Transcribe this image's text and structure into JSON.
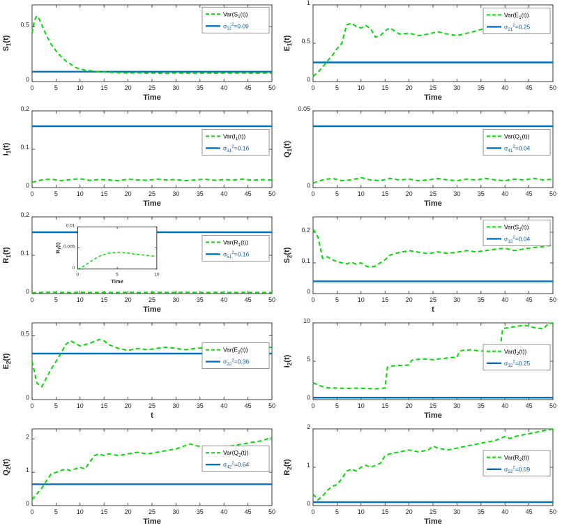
{
  "colors": {
    "series_green": "#00dd00",
    "hline_blue": "#0072bd",
    "axis": "#262626",
    "legend_border": "#7a7a7a",
    "var_text": "#000000",
    "sigma_text": "#0b5aa5"
  },
  "chart_data": [
    {
      "id": "S1",
      "type": "line",
      "ylabel": "S_1(t)",
      "xlabel": "Time",
      "xlim": [
        0,
        50
      ],
      "xticks": [
        0,
        5,
        10,
        15,
        20,
        25,
        30,
        35,
        40,
        45,
        50
      ],
      "ylim": [
        0,
        0.7
      ],
      "yticks": [
        0,
        0.5
      ],
      "legend": [
        {
          "label": "Var(S_1(t))"
        },
        {
          "label": "σ_11^2=0.09"
        }
      ],
      "legend_y": 0.03,
      "hline": 0.09,
      "x": [
        0,
        0.5,
        1,
        1.5,
        2,
        2.5,
        3,
        4,
        5,
        6,
        7,
        8,
        9,
        10,
        11,
        12,
        14,
        16,
        18,
        20,
        22,
        24,
        26,
        28,
        30,
        32,
        34,
        36,
        38,
        40,
        42,
        44,
        46,
        48,
        50
      ],
      "y": [
        0.44,
        0.56,
        0.6,
        0.57,
        0.52,
        0.47,
        0.42,
        0.34,
        0.28,
        0.23,
        0.19,
        0.16,
        0.13,
        0.115,
        0.105,
        0.1,
        0.09,
        0.085,
        0.082,
        0.078,
        0.08,
        0.076,
        0.078,
        0.074,
        0.079,
        0.077,
        0.075,
        0.078,
        0.076,
        0.078,
        0.077,
        0.078,
        0.076,
        0.078,
        0.077
      ]
    },
    {
      "id": "E1",
      "type": "line",
      "ylabel": "E_1(t)",
      "xlabel": "Time",
      "xlim": [
        0,
        50
      ],
      "xticks": [
        0,
        5,
        10,
        15,
        20,
        25,
        30,
        35,
        40,
        45,
        50
      ],
      "ylim": [
        0,
        1
      ],
      "yticks": [
        0,
        0.5,
        1
      ],
      "legend": [
        {
          "label": "Var(E_1(t))"
        },
        {
          "label": "σ_21^2=0.25"
        }
      ],
      "legend_y": 0.04,
      "hline": 0.25,
      "x": [
        0,
        1,
        2,
        3,
        4,
        5,
        6,
        6.5,
        7,
        8,
        9,
        10,
        11,
        12,
        13,
        14,
        15,
        16,
        17,
        18,
        20,
        22,
        24,
        26,
        28,
        30,
        32,
        34,
        36,
        38,
        40,
        42,
        44,
        46,
        48,
        50
      ],
      "y": [
        0.07,
        0.12,
        0.19,
        0.27,
        0.34,
        0.43,
        0.5,
        0.62,
        0.74,
        0.76,
        0.72,
        0.7,
        0.73,
        0.69,
        0.58,
        0.6,
        0.66,
        0.7,
        0.66,
        0.62,
        0.63,
        0.6,
        0.62,
        0.65,
        0.62,
        0.6,
        0.63,
        0.66,
        0.7,
        0.66,
        0.64,
        0.68,
        0.72,
        0.7,
        0.73,
        0.75
      ]
    },
    {
      "id": "I1",
      "type": "line",
      "ylabel": "I_1(t)",
      "xlabel": "Time",
      "xlim": [
        0,
        50
      ],
      "xticks": [
        0,
        5,
        10,
        15,
        20,
        25,
        30,
        35,
        40,
        45,
        50
      ],
      "ylim": [
        0,
        0.2
      ],
      "yticks": [
        0,
        0.1,
        0.2
      ],
      "legend": [
        {
          "label": "Var(I_1(t))"
        },
        {
          "label": "σ_31^2=0.16"
        }
      ],
      "legend_y": 0.24,
      "hline": 0.16,
      "x": [
        0,
        2,
        4,
        6,
        8,
        10,
        12,
        14,
        16,
        18,
        20,
        22,
        24,
        26,
        28,
        30,
        32,
        34,
        36,
        38,
        40,
        42,
        44,
        46,
        48,
        50
      ],
      "y": [
        0.014,
        0.02,
        0.022,
        0.018,
        0.021,
        0.023,
        0.019,
        0.021,
        0.02,
        0.018,
        0.022,
        0.02,
        0.019,
        0.022,
        0.02,
        0.021,
        0.018,
        0.02,
        0.022,
        0.019,
        0.021,
        0.02,
        0.022,
        0.019,
        0.021,
        0.02
      ]
    },
    {
      "id": "Q1",
      "type": "line",
      "ylabel": "Q_1(t)",
      "xlabel": "Time",
      "xlim": [
        0,
        50
      ],
      "xticks": [
        0,
        5,
        10,
        15,
        20,
        25,
        30,
        35,
        40,
        45,
        50
      ],
      "ylim": [
        0,
        0.05
      ],
      "yticks": [
        0,
        0.05
      ],
      "legend": [
        {
          "label": "Var(Q_1(t))"
        },
        {
          "label": "σ_41^2=0.04"
        }
      ],
      "legend_y": 0.24,
      "hline": 0.04,
      "x": [
        0,
        2,
        4,
        6,
        8,
        10,
        12,
        14,
        16,
        18,
        20,
        22,
        24,
        26,
        28,
        30,
        32,
        34,
        36,
        38,
        40,
        42,
        44,
        46,
        48,
        50
      ],
      "y": [
        0.003,
        0.005,
        0.006,
        0.0045,
        0.005,
        0.0065,
        0.005,
        0.0045,
        0.006,
        0.005,
        0.0055,
        0.0045,
        0.005,
        0.006,
        0.005,
        0.0045,
        0.0055,
        0.005,
        0.006,
        0.005,
        0.0045,
        0.0055,
        0.005,
        0.006,
        0.005,
        0.0055
      ]
    },
    {
      "id": "R1",
      "type": "line",
      "ylabel": "R_1(t)",
      "xlabel": "Time",
      "xlim": [
        0,
        50
      ],
      "xticks": [
        0,
        5,
        10,
        15,
        20,
        25,
        30,
        35,
        40,
        45,
        50
      ],
      "ylim": [
        0,
        0.2
      ],
      "yticks": [
        0,
        0.1,
        0.2
      ],
      "legend": [
        {
          "label": "Var(R_1(t))"
        },
        {
          "label": "σ_51^2=0.16"
        }
      ],
      "legend_y": 0.24,
      "hline": 0.16,
      "x": [
        0,
        2,
        4,
        6,
        8,
        10,
        12,
        14,
        16,
        18,
        20,
        22,
        24,
        26,
        28,
        30,
        32,
        34,
        36,
        38,
        40,
        42,
        44,
        46,
        48,
        50
      ],
      "y": [
        0.002,
        0.003,
        0.0035,
        0.003,
        0.0028,
        0.0032,
        0.003,
        0.0029,
        0.0031,
        0.003,
        0.0032,
        0.0028,
        0.003,
        0.0031,
        0.0029,
        0.003,
        0.0032,
        0.003,
        0.0028,
        0.0031,
        0.003,
        0.0029,
        0.0031,
        0.003,
        0.0028,
        0.003
      ],
      "inset": {
        "pos": [
          0.19,
          0.13,
          0.33,
          0.55
        ],
        "ylabel": "R_1(t)",
        "xlabel": "Time",
        "xlim": [
          0,
          10
        ],
        "xticks": [
          0,
          5,
          10
        ],
        "ylim": [
          0,
          0.01
        ],
        "yticks": [
          0,
          0.005,
          0.01
        ],
        "x": [
          0,
          0.5,
          1,
          1.5,
          2,
          2.5,
          3,
          4,
          5,
          6,
          7,
          8,
          9,
          10
        ],
        "y": [
          0,
          0.0004,
          0.001,
          0.0016,
          0.0022,
          0.0028,
          0.0033,
          0.0038,
          0.004,
          0.0039,
          0.0036,
          0.0034,
          0.0032,
          0.003
        ]
      }
    },
    {
      "id": "S2",
      "type": "line",
      "ylabel": "S_2(t)",
      "xlabel": "t",
      "xlim": [
        0,
        50
      ],
      "xticks": [
        0,
        5,
        10,
        15,
        20,
        25,
        30,
        35,
        40,
        45,
        50
      ],
      "ylim": [
        0,
        0.25
      ],
      "yticks": [
        0,
        0.1,
        0.2
      ],
      "legend": [
        {
          "label": "Var(S_2(t))"
        },
        {
          "label": "σ_12^2=0.04"
        }
      ],
      "legend_y": 0.04,
      "hline": 0.04,
      "x": [
        0,
        1,
        2,
        3,
        4,
        5,
        6,
        7,
        8,
        9,
        10,
        11,
        12,
        13,
        14,
        15,
        16,
        17,
        18,
        20,
        22,
        24,
        26,
        28,
        30,
        32,
        34,
        36,
        38,
        40,
        42,
        44,
        46,
        48,
        50
      ],
      "y": [
        0.21,
        0.185,
        0.115,
        0.12,
        0.11,
        0.105,
        0.1,
        0.097,
        0.102,
        0.096,
        0.1,
        0.09,
        0.086,
        0.09,
        0.1,
        0.11,
        0.125,
        0.13,
        0.134,
        0.14,
        0.135,
        0.13,
        0.136,
        0.131,
        0.135,
        0.14,
        0.136,
        0.14,
        0.145,
        0.148,
        0.14,
        0.146,
        0.15,
        0.153,
        0.158
      ]
    },
    {
      "id": "E2",
      "type": "line",
      "ylabel": "E_2(t)",
      "xlabel": "t",
      "xlim": [
        0,
        50
      ],
      "xticks": [
        0,
        5,
        10,
        15,
        20,
        25,
        30,
        35,
        40,
        45,
        50
      ],
      "ylim": [
        0,
        0.6
      ],
      "yticks": [
        0,
        0.5
      ],
      "legend": [
        {
          "label": "Var(E_2(t))"
        },
        {
          "label": "σ_22^2=0.36"
        }
      ],
      "legend_y": 0.26,
      "hline": 0.36,
      "x": [
        0,
        1,
        2,
        3,
        4,
        5,
        6,
        7,
        8,
        9,
        10,
        12,
        14,
        15,
        16,
        18,
        20,
        22,
        24,
        26,
        28,
        30,
        32,
        34,
        36,
        38,
        40,
        42,
        44,
        46,
        48,
        50
      ],
      "y": [
        0.3,
        0.13,
        0.1,
        0.17,
        0.24,
        0.3,
        0.36,
        0.43,
        0.46,
        0.44,
        0.42,
        0.44,
        0.47,
        0.46,
        0.43,
        0.4,
        0.385,
        0.4,
        0.39,
        0.4,
        0.41,
        0.4,
        0.39,
        0.4,
        0.405,
        0.41,
        0.4,
        0.39,
        0.4,
        0.4,
        0.405,
        0.41
      ]
    },
    {
      "id": "I2",
      "type": "line",
      "ylabel": "I_2(t)",
      "xlabel": "Time",
      "xlim": [
        0,
        50
      ],
      "xticks": [
        0,
        5,
        10,
        15,
        20,
        25,
        30,
        35,
        40,
        45,
        50
      ],
      "ylim": [
        0,
        10
      ],
      "yticks": [
        0,
        5,
        10
      ],
      "legend": [
        {
          "label": "Var(I_2(t))"
        },
        {
          "label": "σ_32^2=0.25"
        }
      ],
      "legend_y": 0.28,
      "hline": 0.25,
      "x": [
        0,
        1,
        2,
        3,
        5,
        7,
        9,
        11,
        13,
        15,
        15.5,
        16,
        18,
        20,
        20.5,
        21,
        23,
        25,
        27,
        29,
        30,
        30.5,
        31,
        33,
        35,
        37,
        39,
        39.5,
        40,
        42,
        44,
        46,
        48,
        49,
        50
      ],
      "y": [
        2.2,
        1.9,
        1.7,
        1.55,
        1.5,
        1.45,
        1.5,
        1.45,
        1.4,
        1.5,
        4.2,
        4.35,
        4.45,
        4.5,
        5.1,
        5.2,
        5.3,
        5.2,
        5.35,
        5.5,
        5.5,
        6.3,
        6.4,
        6.5,
        6.3,
        6.55,
        6.5,
        9.2,
        9.3,
        9.5,
        9.7,
        9.4,
        9.2,
        9.9,
        10
      ]
    },
    {
      "id": "Q2",
      "type": "line",
      "ylabel": "Q_2(t)",
      "xlabel": "Time",
      "xlim": [
        0,
        50
      ],
      "xticks": [
        0,
        5,
        10,
        15,
        20,
        25,
        30,
        35,
        40,
        45,
        50
      ],
      "ylim": [
        0,
        2.3
      ],
      "yticks": [
        0,
        1,
        2
      ],
      "legend": [
        {
          "label": "Var(Q_2(t))"
        },
        {
          "label": "σ_42^2=0.64"
        }
      ],
      "legend_y": 0.22,
      "hline": 0.64,
      "x": [
        0,
        1,
        2,
        3,
        4,
        5,
        6,
        7,
        8,
        9,
        10,
        11,
        12,
        13,
        14,
        15,
        16,
        18,
        20,
        22,
        24,
        26,
        28,
        30,
        32,
        33,
        34,
        36,
        38,
        40,
        42,
        44,
        46,
        48,
        50
      ],
      "y": [
        0.18,
        0.35,
        0.52,
        0.75,
        0.95,
        1,
        1.05,
        1.1,
        1.05,
        1.1,
        1.15,
        1.1,
        1.3,
        1.5,
        1.55,
        1.5,
        1.55,
        1.5,
        1.55,
        1.6,
        1.55,
        1.6,
        1.65,
        1.7,
        1.8,
        1.85,
        1.8,
        1.75,
        1.7,
        1.75,
        1.8,
        1.85,
        1.9,
        1.95,
        2.05
      ]
    },
    {
      "id": "R2",
      "type": "line",
      "ylabel": "R_2(t)",
      "xlabel": "Time",
      "xlim": [
        0,
        50
      ],
      "xticks": [
        0,
        5,
        10,
        15,
        20,
        25,
        30,
        35,
        40,
        45,
        50
      ],
      "ylim": [
        0,
        2
      ],
      "yticks": [
        0,
        1,
        2
      ],
      "legend": [
        {
          "label": "Var(R_2(t))"
        },
        {
          "label": "σ_52^2=0.09"
        }
      ],
      "legend_y": 0.28,
      "hline": 0.09,
      "x": [
        0,
        1,
        2,
        3,
        4,
        5,
        6,
        7,
        8,
        9,
        10,
        11,
        12,
        13,
        14,
        15,
        16,
        18,
        20,
        22,
        24,
        25,
        26,
        28,
        30,
        32,
        34,
        36,
        38,
        40,
        41,
        42,
        44,
        46,
        48,
        50
      ],
      "y": [
        0.3,
        0.15,
        0.25,
        0.4,
        0.5,
        0.55,
        0.7,
        0.9,
        0.95,
        0.9,
        1,
        1.05,
        1,
        1.05,
        1.1,
        1.3,
        1.35,
        1.4,
        1.45,
        1.4,
        1.45,
        1.55,
        1.5,
        1.45,
        1.5,
        1.55,
        1.6,
        1.65,
        1.7,
        1.8,
        1.75,
        1.8,
        1.85,
        1.9,
        1.95,
        2
      ]
    }
  ]
}
